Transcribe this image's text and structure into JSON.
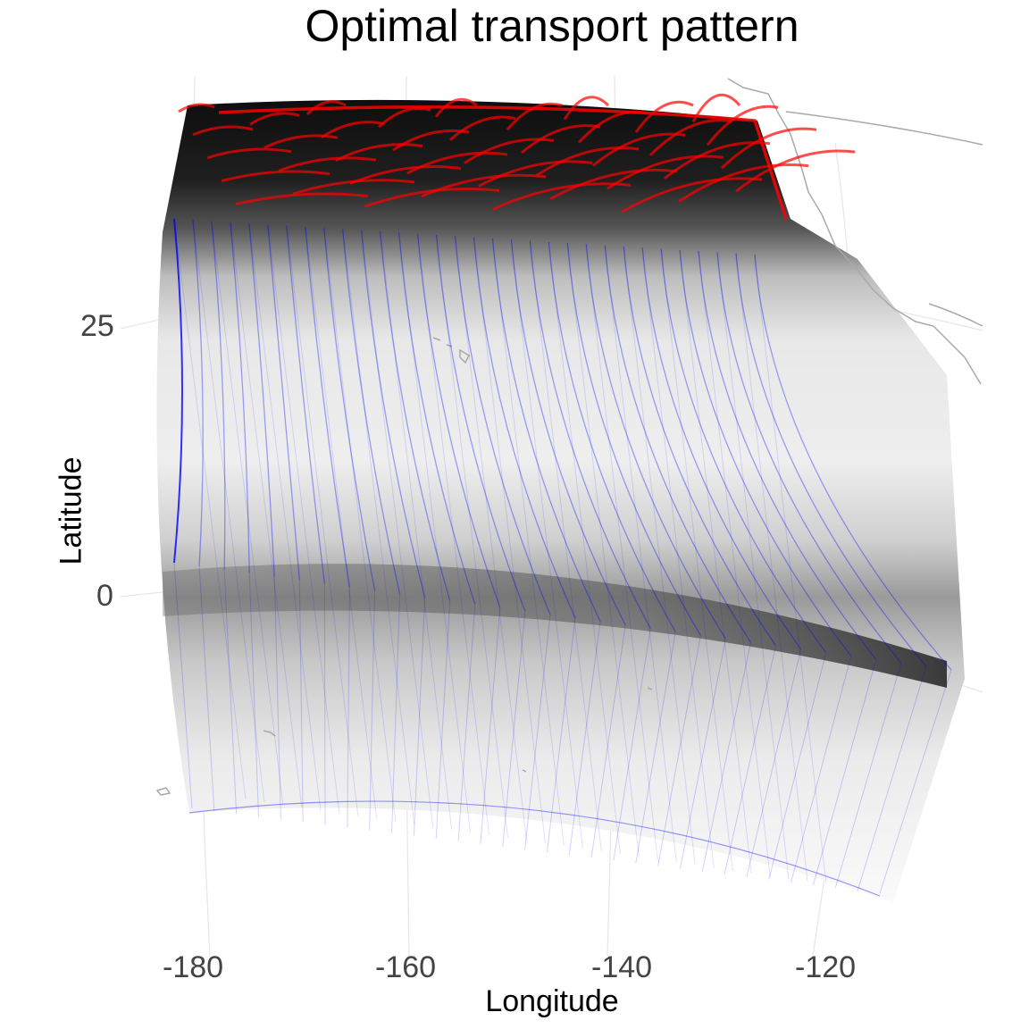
{
  "title": "Optimal transport pattern",
  "x_axis": {
    "label": "Longitude",
    "ticks": [
      "-180",
      "-160",
      "-140",
      "-120"
    ]
  },
  "y_axis": {
    "label": "Latitude",
    "ticks": [
      "25",
      "0"
    ]
  },
  "colors": {
    "background": "#ffffff",
    "gridline": "#e6e6e6",
    "coastline": "#a9a9a9",
    "transport_flow": "#0000ff",
    "high_mass_flow": "#ff0000",
    "density_high": "#000000",
    "density_low": "#ffffff"
  },
  "map": {
    "projection": "orthographic",
    "layers": [
      "density-grid",
      "transport-lines",
      "coastlines"
    ],
    "region": {
      "lon": [
        -180,
        -110
      ],
      "lat": [
        -20,
        45
      ]
    }
  }
}
